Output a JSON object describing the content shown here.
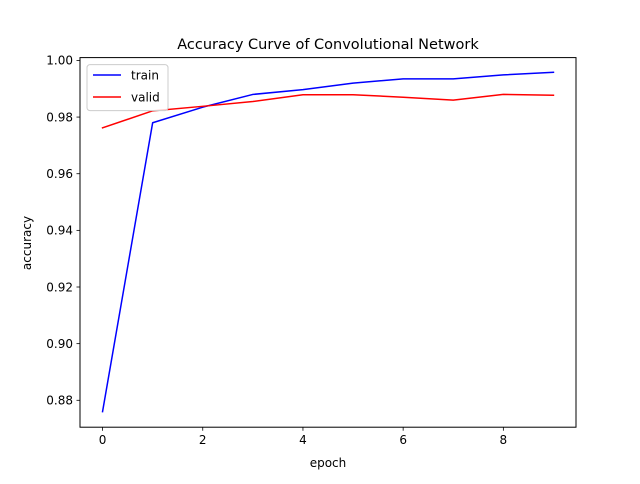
{
  "chart_data": {
    "type": "line",
    "title": "Accuracy Curve of Convolutional Network",
    "xlabel": "epoch",
    "ylabel": "accuracy",
    "xlim": [
      -0.45,
      9.45
    ],
    "ylim": [
      0.8705,
      1.001
    ],
    "xticks": [
      0,
      2,
      4,
      6,
      8
    ],
    "xtick_labels": [
      "0",
      "2",
      "4",
      "6",
      "8"
    ],
    "yticks": [
      0.88,
      0.9,
      0.92,
      0.94,
      0.96,
      0.98,
      1.0
    ],
    "ytick_labels": [
      "0.88",
      "0.90",
      "0.92",
      "0.94",
      "0.96",
      "0.98",
      "1.00"
    ],
    "grid": false,
    "legend_position": "upper-left",
    "x": [
      0,
      1,
      2,
      3,
      4,
      5,
      6,
      7,
      8,
      9
    ],
    "series": [
      {
        "name": "train",
        "color": "#0000ff",
        "values": [
          0.876,
          0.978,
          0.9835,
          0.988,
          0.9897,
          0.992,
          0.9935,
          0.9935,
          0.9949,
          0.9958
        ]
      },
      {
        "name": "valid",
        "color": "#ff0000",
        "values": [
          0.9762,
          0.9822,
          0.9838,
          0.9855,
          0.9879,
          0.9879,
          0.987,
          0.986,
          0.988,
          0.9877
        ]
      }
    ]
  }
}
